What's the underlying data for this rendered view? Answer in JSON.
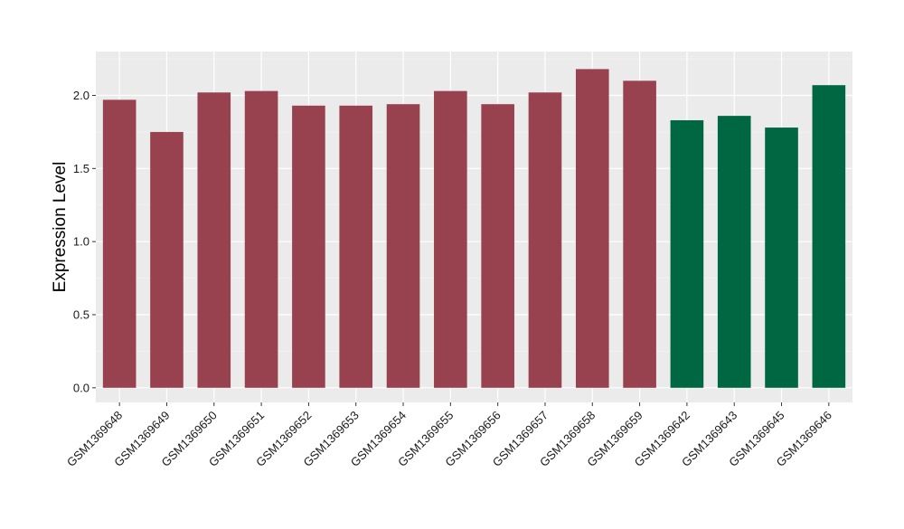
{
  "chart_data": {
    "type": "bar",
    "ylabel": "Expression Level",
    "xlabel": "",
    "ylim": [
      -0.1,
      2.3
    ],
    "yticks": [
      0.0,
      0.5,
      1.0,
      1.5,
      2.0
    ],
    "ytick_labels": [
      "0.0",
      "0.5",
      "1.0",
      "1.5",
      "2.0"
    ],
    "grid": true,
    "background_color": "#EBEBEB",
    "categories": [
      "GSM1369648",
      "GSM1369649",
      "GSM1369650",
      "GSM1369651",
      "GSM1369652",
      "GSM1369653",
      "GSM1369654",
      "GSM1369655",
      "GSM1369656",
      "GSM1369657",
      "GSM1369658",
      "GSM1369659",
      "GSM1369642",
      "GSM1369643",
      "GSM1369645",
      "GSM1369646"
    ],
    "values": [
      1.97,
      1.75,
      2.02,
      2.03,
      1.93,
      1.93,
      1.94,
      2.03,
      1.94,
      2.02,
      2.18,
      2.1,
      1.83,
      1.86,
      1.78,
      2.07
    ],
    "bar_colors": [
      "#99424F",
      "#99424F",
      "#99424F",
      "#99424F",
      "#99424F",
      "#99424F",
      "#99424F",
      "#99424F",
      "#99424F",
      "#99424F",
      "#99424F",
      "#99424F",
      "#006743",
      "#006743",
      "#006743",
      "#006743"
    ]
  }
}
